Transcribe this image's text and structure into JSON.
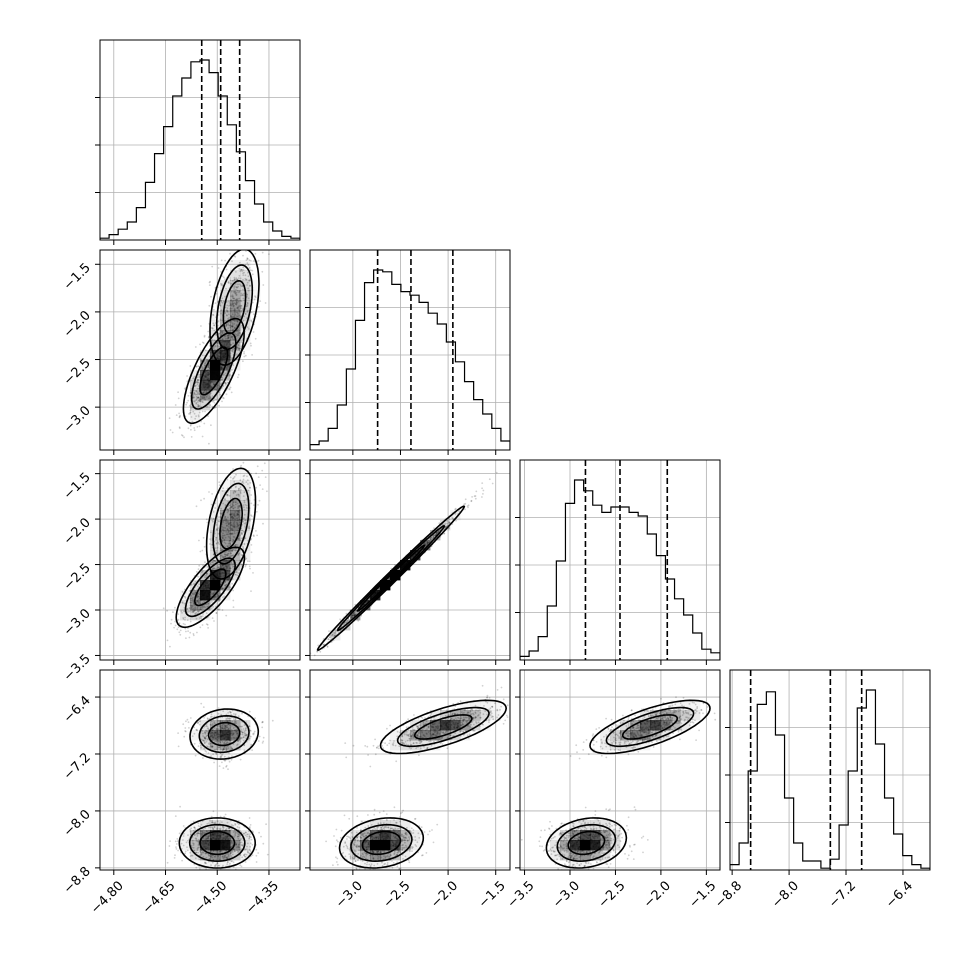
{
  "chart_data": {
    "type": "corner",
    "grid": true,
    "parameters": [
      {
        "ticks": [
          -4.8,
          -4.65,
          -4.5,
          -4.35
        ],
        "tick_labels": [
          "−4.80",
          "−4.65",
          "−4.50",
          "−4.35"
        ],
        "range": [
          -4.84,
          -4.26
        ]
      },
      {
        "ticks": [
          -3.0,
          -2.5,
          -2.0,
          -1.5
        ],
        "tick_labels": [
          "−3.0",
          "−2.5",
          "−2.0",
          "−1.5"
        ],
        "range": [
          -3.45,
          -1.35
        ]
      },
      {
        "ticks": [
          -3.5,
          -3.0,
          -2.5,
          -2.0,
          -1.5
        ],
        "tick_labels": [
          "−3.5",
          "−3.0",
          "−2.5",
          "−2.0",
          "−1.5"
        ],
        "range": [
          -3.55,
          -1.35
        ]
      },
      {
        "ticks": [
          -8.8,
          -8.0,
          -7.2,
          -6.4
        ],
        "tick_labels": [
          "−8.8",
          "−8.0",
          "−7.2",
          "−6.4"
        ],
        "range": [
          -8.83,
          -6.02
        ]
      }
    ],
    "marginals": [
      {
        "param": 0,
        "quantiles": [
          -4.545,
          -4.49,
          -4.435
        ],
        "hist": [
          0.01,
          0.03,
          0.06,
          0.1,
          0.18,
          0.32,
          0.48,
          0.63,
          0.8,
          0.9,
          0.99,
          1.0,
          0.93,
          0.8,
          0.64,
          0.49,
          0.33,
          0.2,
          0.1,
          0.05,
          0.02,
          0.01
        ]
      },
      {
        "param": 1,
        "quantiles": [
          -2.74,
          -2.39,
          -1.95
        ],
        "hist": [
          0.03,
          0.05,
          0.12,
          0.25,
          0.45,
          0.72,
          0.93,
          1.0,
          0.99,
          0.92,
          0.88,
          0.86,
          0.82,
          0.76,
          0.7,
          0.6,
          0.49,
          0.38,
          0.28,
          0.2,
          0.12,
          0.05
        ]
      },
      {
        "param": 2,
        "quantiles": [
          -2.83,
          -2.45,
          -1.93
        ],
        "hist": [
          0.02,
          0.05,
          0.13,
          0.3,
          0.55,
          0.87,
          1.0,
          0.94,
          0.86,
          0.82,
          0.85,
          0.85,
          0.82,
          0.8,
          0.7,
          0.58,
          0.45,
          0.34,
          0.25,
          0.15,
          0.06,
          0.04
        ]
      },
      {
        "param": 3,
        "quantiles": [
          -8.54,
          -7.42,
          -6.98
        ],
        "hist": [
          0.03,
          0.15,
          0.55,
          0.92,
          0.99,
          0.75,
          0.4,
          0.15,
          0.05,
          0.05,
          0.01,
          0.06,
          0.25,
          0.55,
          0.9,
          1.0,
          0.7,
          0.4,
          0.2,
          0.08,
          0.03,
          0.01
        ]
      }
    ],
    "joint_panels": [
      {
        "x_param": 0,
        "y_param": 1,
        "shape": "tilted-banana",
        "modes": [
          {
            "cx": -4.51,
            "cy": -2.62,
            "sx": 0.04,
            "sy": 0.25,
            "rho": 0.72,
            "weight": 1.0
          },
          {
            "cx": -4.45,
            "cy": -1.95,
            "sx": 0.035,
            "sy": 0.3,
            "rho": 0.4,
            "weight": 0.55
          }
        ]
      },
      {
        "x_param": 0,
        "y_param": 2,
        "shape": "tilted-banana",
        "modes": [
          {
            "cx": -4.52,
            "cy": -2.75,
            "sx": 0.045,
            "sy": 0.2,
            "rho": 0.75,
            "weight": 1.0
          },
          {
            "cx": -4.46,
            "cy": -2.05,
            "sx": 0.035,
            "sy": 0.3,
            "rho": 0.4,
            "weight": 0.7
          }
        ]
      },
      {
        "x_param": 1,
        "y_param": 2,
        "shape": "linear-ridge",
        "modes": [
          {
            "cx": -2.6,
            "cy": -2.65,
            "sx": 0.35,
            "sy": 0.36,
            "rho": 0.995,
            "weight": 1.0
          }
        ]
      },
      {
        "x_param": 0,
        "y_param": 3,
        "shape": "two-blobs",
        "modes": [
          {
            "cx": -4.5,
            "cy": -8.45,
            "sx": 0.05,
            "sy": 0.16,
            "rho": 0.0,
            "weight": 1.0
          },
          {
            "cx": -4.48,
            "cy": -6.92,
            "sx": 0.045,
            "sy": 0.16,
            "rho": 0.1,
            "weight": 0.8
          }
        ]
      },
      {
        "x_param": 1,
        "y_param": 3,
        "shape": "two-blobs",
        "modes": [
          {
            "cx": -2.7,
            "cy": -8.45,
            "sx": 0.2,
            "sy": 0.16,
            "rho": 0.2,
            "weight": 1.0
          },
          {
            "cx": -2.05,
            "cy": -6.82,
            "sx": 0.3,
            "sy": 0.17,
            "rho": 0.7,
            "weight": 0.8
          }
        ]
      },
      {
        "x_param": 2,
        "y_param": 3,
        "shape": "two-blobs",
        "modes": [
          {
            "cx": -2.82,
            "cy": -8.45,
            "sx": 0.2,
            "sy": 0.16,
            "rho": 0.2,
            "weight": 1.0
          },
          {
            "cx": -2.12,
            "cy": -6.82,
            "sx": 0.3,
            "sy": 0.17,
            "rho": 0.7,
            "weight": 0.8
          }
        ]
      }
    ],
    "colors": {
      "line": "#000000",
      "grid": "#b0b0b0",
      "scatter": "#000000",
      "fill": "#000000"
    }
  }
}
